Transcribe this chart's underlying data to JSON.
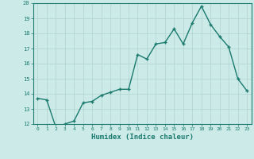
{
  "x": [
    0,
    1,
    2,
    3,
    4,
    5,
    6,
    7,
    8,
    9,
    10,
    11,
    12,
    13,
    14,
    15,
    16,
    17,
    18,
    19,
    20,
    21,
    22,
    23
  ],
  "y": [
    13.7,
    13.6,
    11.8,
    12.0,
    12.2,
    13.4,
    13.5,
    13.9,
    14.1,
    14.3,
    14.3,
    16.6,
    16.3,
    17.3,
    17.4,
    18.3,
    17.3,
    18.7,
    19.8,
    18.6,
    17.8,
    17.1,
    15.0,
    14.2
  ],
  "line_color": "#1a7a6e",
  "bg_color": "#cceae7",
  "grid_color": "#b0d4d0",
  "xlabel": "Humidex (Indice chaleur)",
  "ylim": [
    12,
    20
  ],
  "xlim": [
    -0.5,
    23.5
  ],
  "yticks": [
    12,
    13,
    14,
    15,
    16,
    17,
    18,
    19,
    20
  ],
  "xticks": [
    0,
    1,
    2,
    3,
    4,
    5,
    6,
    7,
    8,
    9,
    10,
    11,
    12,
    13,
    14,
    15,
    16,
    17,
    18,
    19,
    20,
    21,
    22,
    23
  ],
  "font_color": "#1a7a6e",
  "markersize": 2.5,
  "linewidth": 1.0
}
